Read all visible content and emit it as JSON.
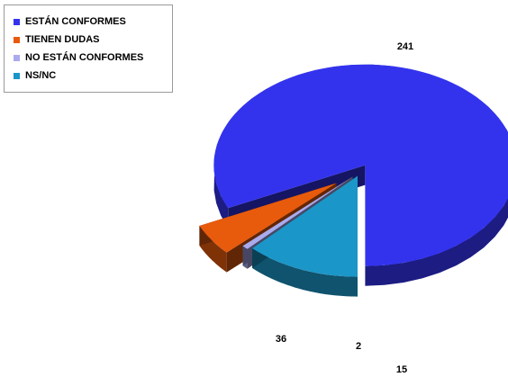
{
  "chart_data": {
    "type": "pie",
    "title": "",
    "legend_position": "top-left",
    "slices": [
      {
        "label": "ESTÁN CONFORMES",
        "value": 241,
        "color": "#3333ee"
      },
      {
        "label": "TIENEN DUDAS",
        "value": 15,
        "color": "#e85a0c"
      },
      {
        "label": "NO ESTÁN CONFORMES",
        "value": 2,
        "color": "#aaaaee"
      },
      {
        "label": "NS/NC",
        "value": 36,
        "color": "#1b96c8"
      }
    ]
  }
}
